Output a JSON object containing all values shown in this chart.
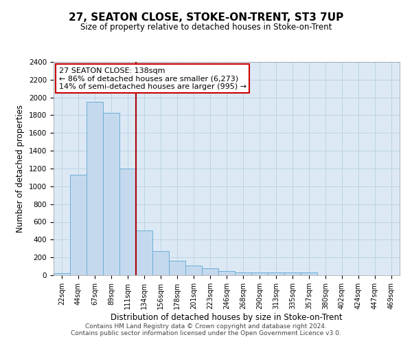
{
  "title": "27, SEATON CLOSE, STOKE-ON-TRENT, ST3 7UP",
  "subtitle": "Size of property relative to detached houses in Stoke-on-Trent",
  "xlabel": "Distribution of detached houses by size in Stoke-on-Trent",
  "ylabel": "Number of detached properties",
  "categories": [
    "22sqm",
    "44sqm",
    "67sqm",
    "89sqm",
    "111sqm",
    "134sqm",
    "156sqm",
    "178sqm",
    "201sqm",
    "223sqm",
    "246sqm",
    "268sqm",
    "290sqm",
    "313sqm",
    "335sqm",
    "357sqm",
    "380sqm",
    "402sqm",
    "424sqm",
    "447sqm",
    "469sqm"
  ],
  "values": [
    25,
    1130,
    1950,
    1830,
    1200,
    500,
    270,
    160,
    110,
    80,
    50,
    30,
    30,
    30,
    30,
    30,
    0,
    0,
    0,
    0,
    0
  ],
  "bar_color": "#c5d9ee",
  "bar_edge_color": "#6baed6",
  "vline_color": "#aa0000",
  "vline_pos": 5,
  "annotation_title": "27 SEATON CLOSE: 138sqm",
  "annotation_line1": "← 86% of detached houses are smaller (6,273)",
  "annotation_line2": "14% of semi-detached houses are larger (995) →",
  "annotation_box_color": "#ffffff",
  "annotation_border_color": "#cc0000",
  "ylim": [
    0,
    2400
  ],
  "yticks": [
    0,
    200,
    400,
    600,
    800,
    1000,
    1200,
    1400,
    1600,
    1800,
    2000,
    2200,
    2400
  ],
  "footer1": "Contains HM Land Registry data © Crown copyright and database right 2024.",
  "footer2": "Contains public sector information licensed under the Open Government Licence v3.0.",
  "bg_color": "#dce9f5"
}
